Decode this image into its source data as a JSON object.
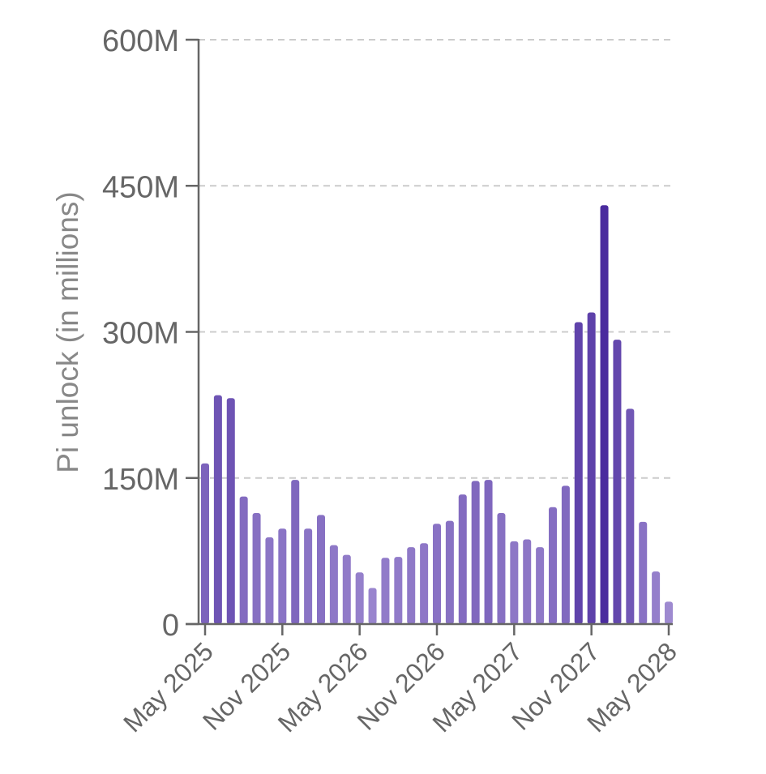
{
  "chart_data": {
    "type": "bar",
    "title": "",
    "ylabel": "Pi unlock (in millions)",
    "xlabel": "",
    "ylim": [
      0,
      600
    ],
    "yticks": [
      {
        "value": 0,
        "label": "0"
      },
      {
        "value": 150,
        "label": "150M"
      },
      {
        "value": 300,
        "label": "300M"
      },
      {
        "value": 450,
        "label": "450M"
      },
      {
        "value": 600,
        "label": "600M"
      }
    ],
    "xticks": [
      "May 2025",
      "Nov 2025",
      "May 2026",
      "Nov 2026",
      "May 2027",
      "Nov 2027",
      "May 2028"
    ],
    "categories": [
      "2025-05",
      "2025-06",
      "2025-07",
      "2025-08",
      "2025-09",
      "2025-10",
      "2025-11",
      "2025-12",
      "2026-01",
      "2026-02",
      "2026-03",
      "2026-04",
      "2026-05",
      "2026-06",
      "2026-07",
      "2026-08",
      "2026-09",
      "2026-10",
      "2026-11",
      "2026-12",
      "2027-01",
      "2027-02",
      "2027-03",
      "2027-04",
      "2027-05",
      "2027-06",
      "2027-07",
      "2027-08",
      "2027-09",
      "2027-10",
      "2027-11",
      "2027-12",
      "2028-01",
      "2028-02",
      "2028-03",
      "2028-04",
      "2028-05"
    ],
    "values": [
      165,
      235,
      232,
      131,
      114,
      89,
      98,
      148,
      98,
      112,
      81,
      71,
      53,
      37,
      68,
      69,
      79,
      83,
      103,
      106,
      133,
      147,
      148,
      114,
      85,
      87,
      79,
      120,
      142,
      310,
      320,
      430,
      292,
      221,
      105,
      54,
      23
    ],
    "grid": true,
    "colors": {
      "bar_light": "#9f8bd1",
      "bar_dark": "#4a2b9e",
      "axis": "#666666",
      "grid": "#cccccc",
      "text": "#666666"
    }
  }
}
